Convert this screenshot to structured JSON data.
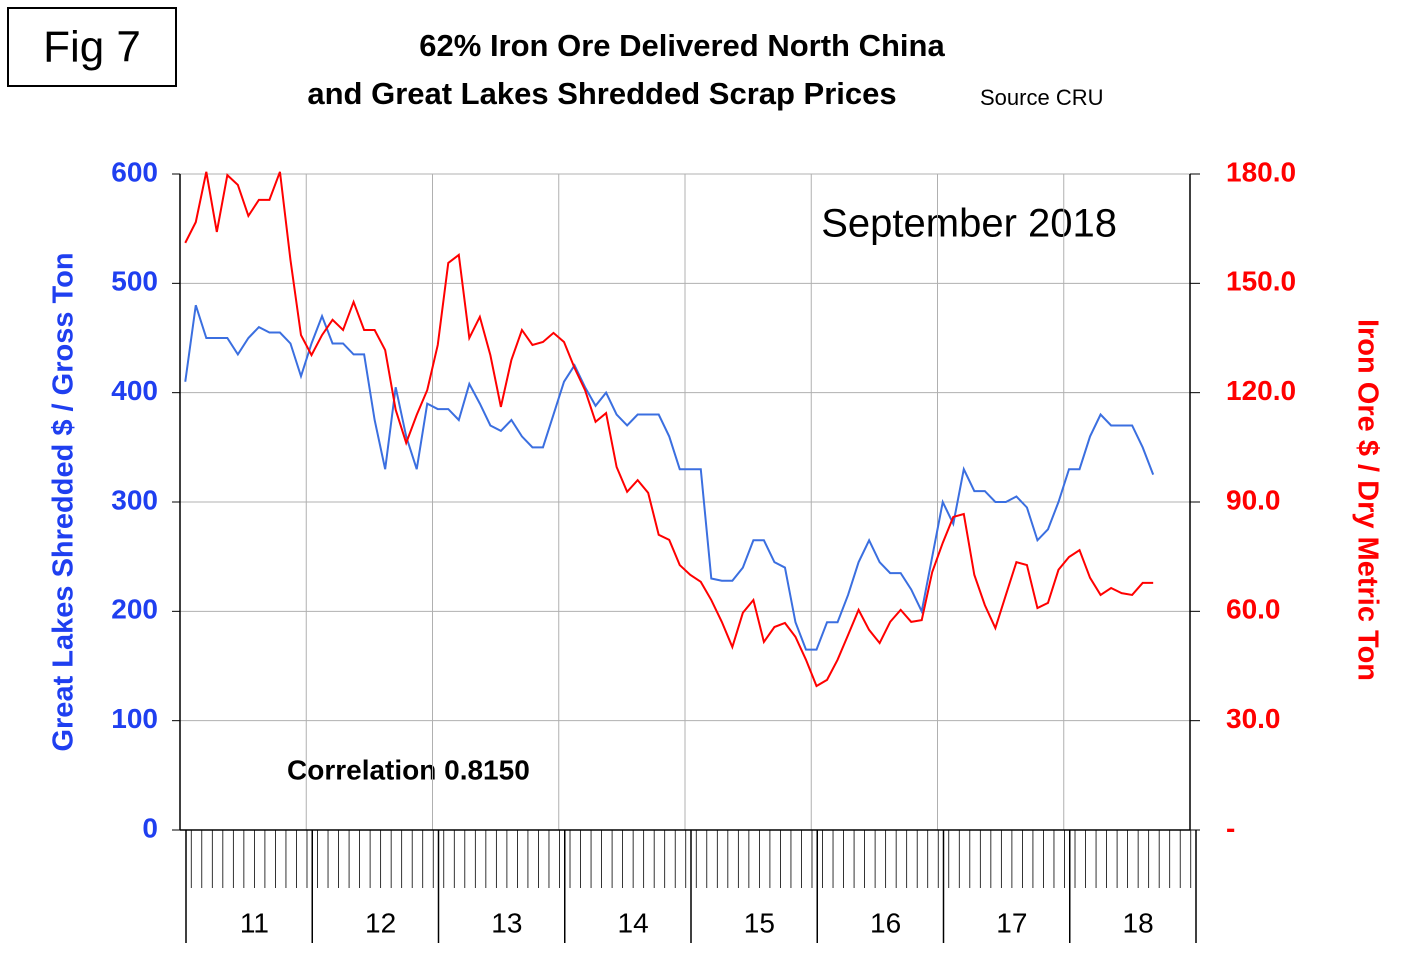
{
  "chart_data": {
    "type": "line",
    "figure_label": "Fig 7",
    "title": [
      "62% Iron Ore Delivered North China",
      "and Great Lakes Shredded Scrap Prices"
    ],
    "source": "Source CRU",
    "annotations": [
      "September 2018",
      "Correlation 0.8150"
    ],
    "y_label": "Great Lakes Shredded $ / Gross Ton",
    "y2_label": "Iron Ore $ / Dry Metric Ton",
    "categories": [
      null,
      null,
      null,
      null,
      null,
      null,
      "11",
      null,
      null,
      null,
      null,
      null,
      null,
      null,
      null,
      null,
      null,
      null,
      "12",
      null,
      null,
      null,
      null,
      null,
      null,
      null,
      null,
      null,
      null,
      null,
      "13",
      null,
      null,
      null,
      null,
      null,
      null,
      null,
      null,
      null,
      null,
      null,
      "14",
      null,
      null,
      null,
      null,
      null,
      null,
      null,
      null,
      null,
      null,
      null,
      "15",
      null,
      null,
      null,
      null,
      null,
      null,
      null,
      null,
      null,
      null,
      null,
      "16",
      null,
      null,
      null,
      null,
      null,
      null,
      null,
      null,
      null,
      null,
      null,
      "17",
      null,
      null,
      null,
      null,
      null,
      null,
      null,
      null,
      null,
      null,
      null,
      "18",
      null,
      null,
      null,
      null,
      null
    ],
    "series": [
      {
        "color": "#3b6fe0",
        "axis": "y",
        "values": [
          410,
          480,
          450,
          450,
          450,
          435,
          450,
          460,
          455,
          455,
          445,
          415,
          445,
          470,
          445,
          445,
          435,
          435,
          375,
          330,
          405,
          360,
          330,
          390,
          385,
          385,
          375,
          408,
          390,
          370,
          365,
          375,
          360,
          350,
          350,
          380,
          410,
          425,
          405,
          388,
          400,
          380,
          370,
          380,
          380,
          380,
          360,
          330,
          330,
          330,
          230,
          228,
          228,
          240,
          265,
          265,
          245,
          240,
          190,
          165,
          165,
          190,
          190,
          215,
          245,
          265,
          245,
          235,
          235,
          220,
          200,
          250,
          300,
          280,
          330,
          310,
          310,
          300,
          300,
          305,
          295,
          265,
          275,
          300,
          330,
          330,
          360,
          380,
          370,
          370,
          370,
          350,
          325,
          null,
          null,
          null
        ]
      },
      {
        "color": "#ff0000",
        "axis": "y2",
        "values": [
          161.1,
          166.8,
          180.6,
          164.1,
          179.7,
          177.0,
          168.5,
          172.9,
          172.9,
          180.6,
          156.4,
          135.8,
          130.3,
          135.8,
          140.0,
          137.2,
          144.9,
          137.2,
          137.2,
          131.7,
          115.3,
          106.2,
          113.9,
          120.7,
          133.1,
          155.6,
          157.8,
          135.0,
          140.8,
          130.3,
          116.1,
          129.0,
          137.2,
          133.1,
          133.9,
          136.4,
          133.9,
          126.8,
          120.7,
          112.0,
          114.4,
          99.6,
          92.8,
          96.0,
          92.5,
          81.0,
          79.6,
          72.7,
          70.0,
          68.1,
          63.1,
          57.1,
          50.2,
          59.6,
          63.1,
          51.6,
          55.7,
          56.8,
          53.0,
          46.7,
          39.5,
          41.2,
          46.7,
          53.5,
          60.4,
          54.9,
          51.3,
          57.1,
          60.4,
          57.1,
          57.6,
          70.8,
          78.8,
          85.9,
          86.7,
          70.0,
          61.7,
          55.4,
          64.5,
          73.5,
          72.7,
          60.9,
          62.3,
          71.4,
          74.9,
          76.8,
          69.2,
          64.5,
          66.4,
          65.0,
          64.5,
          67.8,
          67.8,
          null,
          null,
          null
        ]
      }
    ],
    "ylim": [
      0,
      600
    ],
    "yticks": [
      0,
      100,
      200,
      300,
      400,
      500,
      600
    ],
    "y2lim": [
      0,
      180
    ],
    "y2ticks": [
      {
        "value": 0,
        "label": "-"
      },
      {
        "value": 30,
        "label": "30.0"
      },
      {
        "value": 60,
        "label": "60.0"
      },
      {
        "value": 90,
        "label": "90.0"
      },
      {
        "value": 120,
        "label": "120.0"
      },
      {
        "value": 150,
        "label": "150.0"
      },
      {
        "value": 180,
        "label": "180.0"
      }
    ],
    "grid": true,
    "y_color": "#1f3ff0",
    "y2_color": "#ff0000"
  }
}
